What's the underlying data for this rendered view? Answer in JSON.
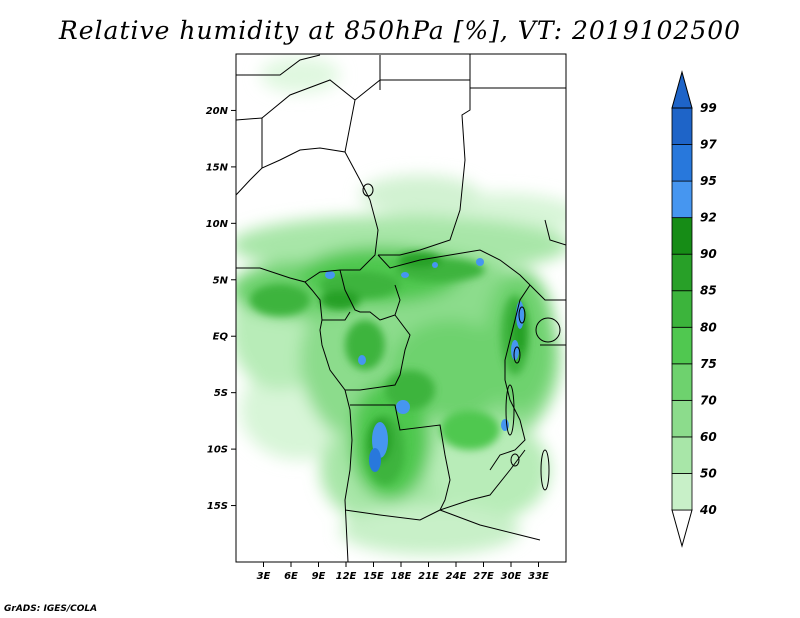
{
  "title": "Relative humidity at 850hPa [%], VT: 2019102500",
  "credit": "GrADS: IGES/COLA",
  "map": {
    "lon_range": [
      0,
      36
    ],
    "lat_range": [
      -20,
      25
    ],
    "lat_ticks": [
      {
        "value": 20,
        "label": "20N"
      },
      {
        "value": 15,
        "label": "15N"
      },
      {
        "value": 10,
        "label": "10N"
      },
      {
        "value": 5,
        "label": "5N"
      },
      {
        "value": 0,
        "label": "EQ"
      },
      {
        "value": -5,
        "label": "5S"
      },
      {
        "value": -10,
        "label": "10S"
      },
      {
        "value": -15,
        "label": "15S"
      }
    ],
    "lon_ticks": [
      {
        "value": 3,
        "label": "3E"
      },
      {
        "value": 6,
        "label": "6E"
      },
      {
        "value": 9,
        "label": "9E"
      },
      {
        "value": 12,
        "label": "12E"
      },
      {
        "value": 15,
        "label": "15E"
      },
      {
        "value": 18,
        "label": "18E"
      },
      {
        "value": 21,
        "label": "21E"
      },
      {
        "value": 24,
        "label": "24E"
      },
      {
        "value": 27,
        "label": "27E"
      },
      {
        "value": 30,
        "label": "30E"
      },
      {
        "value": 33,
        "label": "33E"
      }
    ]
  },
  "colorbar": {
    "levels": [
      {
        "label": "40",
        "color": "#e6fae6"
      },
      {
        "label": "50",
        "color": "#c8f0c8"
      },
      {
        "label": "60",
        "color": "#a8e6a8"
      },
      {
        "label": "70",
        "color": "#8cdc8c"
      },
      {
        "label": "75",
        "color": "#6ed26e"
      },
      {
        "label": "80",
        "color": "#50c850"
      },
      {
        "label": "85",
        "color": "#3cb43c"
      },
      {
        "label": "90",
        "color": "#28a028"
      },
      {
        "label": "92",
        "color": "#168c16"
      },
      {
        "label": "95",
        "color": "#4696f0"
      },
      {
        "label": "97",
        "color": "#2878dc"
      },
      {
        "label": "99",
        "color": "#1e64c8"
      }
    ],
    "bottom_color": "#ffffff",
    "top_color": "#1e64c8"
  }
}
